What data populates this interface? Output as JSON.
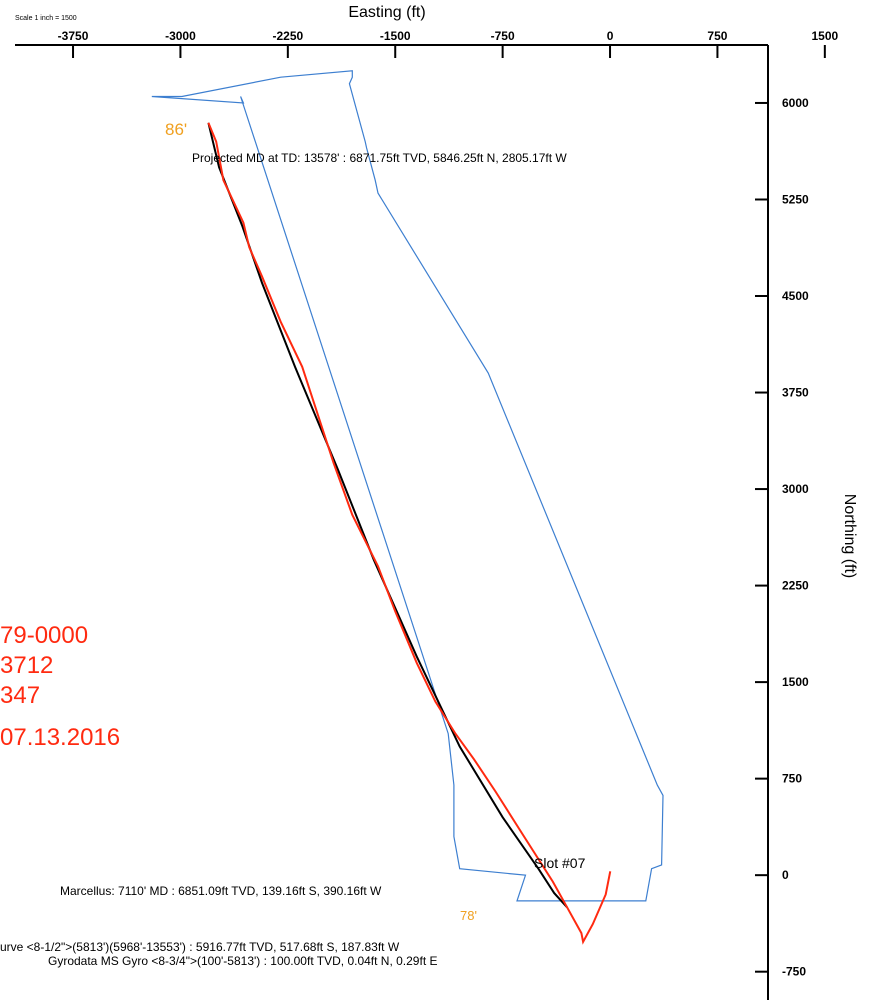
{
  "chart_data": {
    "type": "line",
    "xlabel": "Easting (ft)",
    "ylabel": "Northing (ft)",
    "scale_note": "Scale 1 inch = 1500",
    "x_ticks": [
      "-3750",
      "-3000",
      "-2250",
      "-1500",
      "-750",
      "0",
      "750",
      "1500"
    ],
    "y_ticks": [
      "6000",
      "5250",
      "4500",
      "3750",
      "3000",
      "2250",
      "1500",
      "750",
      "0",
      "-750"
    ],
    "x_tick_values": [
      -3750,
      -3000,
      -2250,
      -1500,
      -750,
      0,
      750,
      1500
    ],
    "y_tick_values": [
      6000,
      5250,
      4500,
      3750,
      3000,
      2250,
      1500,
      750,
      0,
      -750
    ],
    "xlim": [
      -4260,
      1990
    ],
    "ylim": [
      -970,
      6800
    ],
    "grid": false,
    "series": [
      {
        "color": "#000000",
        "x": [
          -2805,
          -2730,
          -2570,
          -2430,
          -2200,
          -1900,
          -1650,
          -1350,
          -1050,
          -750,
          -500,
          -390,
          -300
        ],
        "y": [
          5846,
          5500,
          5050,
          4600,
          3950,
          3150,
          2450,
          1700,
          1000,
          450,
          50,
          -139,
          -250
        ]
      },
      {
        "color": "#ff2a10",
        "x": [
          -2805,
          -2750,
          -2700,
          -2560,
          -2520,
          -2430,
          -2300,
          -2150,
          -1930,
          -1800,
          -1620,
          -1500,
          -1350,
          -1220,
          -1080,
          -950,
          -800,
          -600,
          -400,
          -300,
          -200,
          -188,
          -120,
          -30,
          0,
          2
        ],
        "y": [
          5846,
          5700,
          5400,
          5070,
          4880,
          4650,
          4300,
          3950,
          3200,
          2800,
          2400,
          2050,
          1650,
          1350,
          1100,
          900,
          650,
          300,
          -50,
          -250,
          -450,
          -518,
          -380,
          -150,
          20,
          30
        ]
      }
    ],
    "lease_boundary": {
      "color": "#3d7fd0",
      "x": [
        -3200,
        -2990,
        -2300,
        -1800,
        -1800,
        -1820,
        -1710,
        -1700,
        -1640,
        -1620,
        -850,
        330,
        370,
        360,
        290,
        250,
        -650,
        -590,
        -1050,
        -1090,
        -1090,
        -1130,
        -2580,
        -2560,
        -3200
      ],
      "y": [
        6050,
        6050,
        6200,
        6250,
        6200,
        6150,
        5700,
        5650,
        5400,
        5300,
        3900,
        700,
        620,
        80,
        50,
        -200,
        -200,
        0,
        50,
        300,
        700,
        1100,
        6050,
        6000,
        6050
      ]
    },
    "annotations": {
      "projected_td": "Projected MD at TD: 13578' : 6871.75ft TVD, 5846.25ft N, 2805.17ft W",
      "marcellus": "Marcellus: 7110' MD : 6851.09ft TVD, 139.16ft S, 390.16ft W",
      "survey_line1": "urve <8-1/2\">(5813')(5968'-13553') : 5916.77ft TVD, 517.68ft S, 187.83ft W",
      "survey_line2": "Gyrodata MS Gyro <8-3/4\">(100'-5813') : 100.00ft TVD, 0.04ft N, 0.29ft E",
      "slot": "Slot #07",
      "setback_top": "86'",
      "setback_bottom": "78'"
    },
    "red_notes": [
      "79-0000",
      "3712",
      "347",
      "07.13.2016"
    ]
  }
}
